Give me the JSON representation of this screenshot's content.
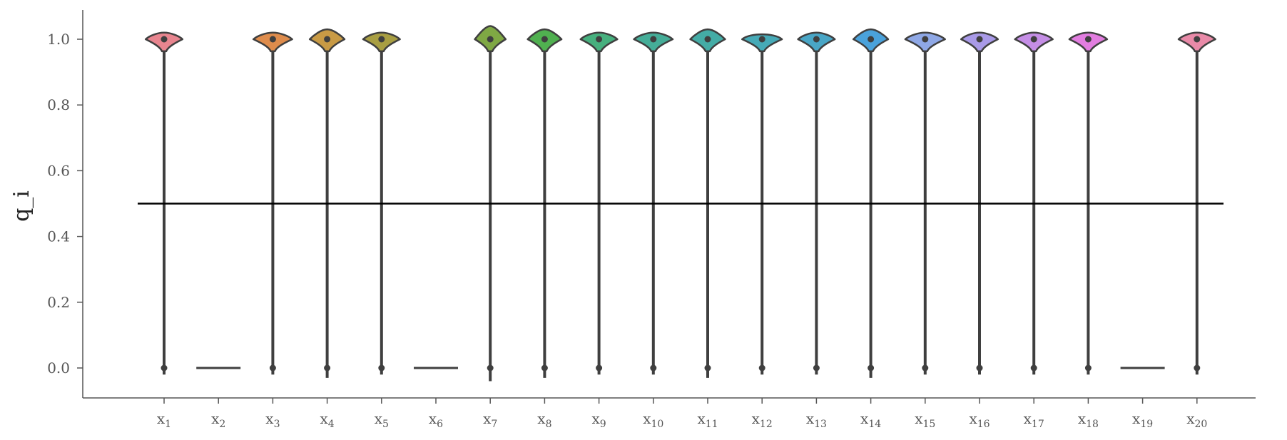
{
  "chart_data": {
    "type": "violin",
    "ylabel": "q_i",
    "ylim": [
      -0.09,
      1.09
    ],
    "yticks": [
      0.0,
      0.2,
      0.4,
      0.6,
      0.8,
      1.0
    ],
    "ytick_labels": [
      "0.0",
      "0.2",
      "0.4",
      "0.6",
      "0.8",
      "1.0"
    ],
    "categories": [
      {
        "base": "x",
        "sub": "1"
      },
      {
        "base": "x",
        "sub": "2"
      },
      {
        "base": "x",
        "sub": "3"
      },
      {
        "base": "x",
        "sub": "4"
      },
      {
        "base": "x",
        "sub": "5"
      },
      {
        "base": "x",
        "sub": "6"
      },
      {
        "base": "x",
        "sub": "7"
      },
      {
        "base": "x",
        "sub": "8"
      },
      {
        "base": "x",
        "sub": "9"
      },
      {
        "base": "x",
        "sub": "10"
      },
      {
        "base": "x",
        "sub": "11"
      },
      {
        "base": "x",
        "sub": "12"
      },
      {
        "base": "x",
        "sub": "13"
      },
      {
        "base": "x",
        "sub": "14"
      },
      {
        "base": "x",
        "sub": "15"
      },
      {
        "base": "x",
        "sub": "16"
      },
      {
        "base": "x",
        "sub": "17"
      },
      {
        "base": "x",
        "sub": "18"
      },
      {
        "base": "x",
        "sub": "19"
      },
      {
        "base": "x",
        "sub": "20"
      }
    ],
    "violins": [
      {
        "has_violin": true,
        "color": "#e8858f",
        "upper_top": 1.02,
        "lower_bottom": -0.02,
        "width": 0.7
      },
      {
        "has_violin": false
      },
      {
        "has_violin": true,
        "color": "#de8c4c",
        "upper_top": 1.02,
        "lower_bottom": -0.02,
        "width": 0.8
      },
      {
        "has_violin": true,
        "color": "#c89a45",
        "upper_top": 1.03,
        "lower_bottom": -0.03,
        "width": 0.6
      },
      {
        "has_violin": true,
        "color": "#a89e42",
        "upper_top": 1.02,
        "lower_bottom": -0.02,
        "width": 0.7
      },
      {
        "has_violin": false
      },
      {
        "has_violin": true,
        "color": "#7fa844",
        "upper_top": 1.04,
        "lower_bottom": -0.04,
        "width": 0.4
      },
      {
        "has_violin": true,
        "color": "#50b050",
        "upper_top": 1.03,
        "lower_bottom": -0.03,
        "width": 0.55
      },
      {
        "has_violin": true,
        "color": "#46b07e",
        "upper_top": 1.02,
        "lower_bottom": -0.02,
        "width": 0.7
      },
      {
        "has_violin": true,
        "color": "#45ad98",
        "upper_top": 1.02,
        "lower_bottom": -0.02,
        "width": 0.8
      },
      {
        "has_violin": true,
        "color": "#44aca6",
        "upper_top": 1.03,
        "lower_bottom": -0.03,
        "width": 0.6
      },
      {
        "has_violin": true,
        "color": "#46aab7",
        "upper_top": 1.015,
        "lower_bottom": -0.02,
        "width": 0.85
      },
      {
        "has_violin": true,
        "color": "#49a6c6",
        "upper_top": 1.02,
        "lower_bottom": -0.02,
        "width": 0.7
      },
      {
        "has_violin": true,
        "color": "#4aa2db",
        "upper_top": 1.03,
        "lower_bottom": -0.03,
        "width": 0.6
      },
      {
        "has_violin": true,
        "color": "#8fa8e6",
        "upper_top": 1.02,
        "lower_bottom": -0.02,
        "width": 0.85
      },
      {
        "has_violin": true,
        "color": "#a99ae8",
        "upper_top": 1.02,
        "lower_bottom": -0.02,
        "width": 0.7
      },
      {
        "has_violin": true,
        "color": "#c58ee6",
        "upper_top": 1.02,
        "lower_bottom": -0.02,
        "width": 0.75
      },
      {
        "has_violin": true,
        "color": "#e27de0",
        "upper_top": 1.02,
        "lower_bottom": -0.02,
        "width": 0.75
      },
      {
        "has_violin": false
      },
      {
        "has_violin": true,
        "color": "#e98aa8",
        "upper_top": 1.02,
        "lower_bottom": -0.02,
        "width": 0.7
      }
    ],
    "reference_line": {
      "y": 0.5,
      "color": "#000000"
    },
    "grid": false
  }
}
